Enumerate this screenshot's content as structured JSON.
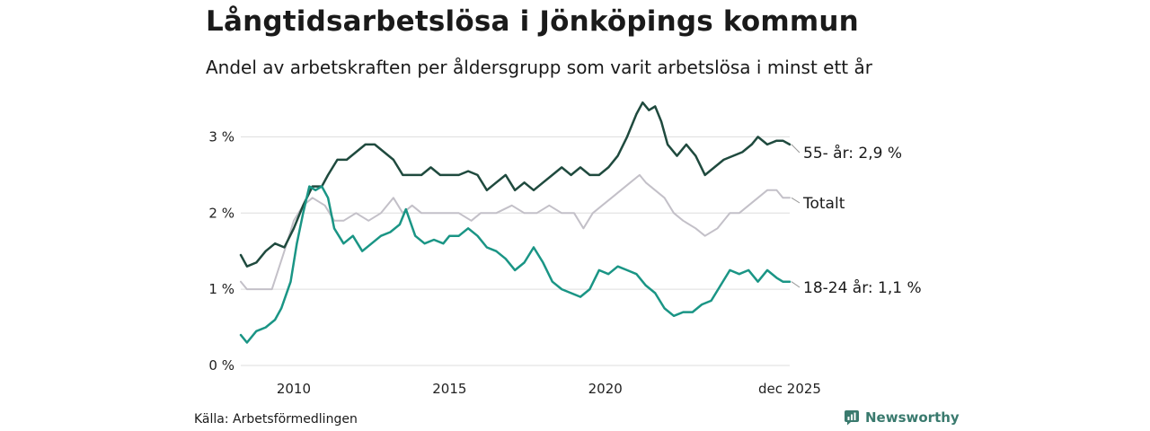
{
  "header": {
    "title": "Långtidsarbetslösa i Jönköpings kommun",
    "subtitle": "Andel av arbetskraften per åldersgrupp som varit arbetslösa i minst ett år"
  },
  "footer": {
    "source": "Källa: Arbetsförmedlingen",
    "brand": "Newsworthy"
  },
  "colors": {
    "older": "#1f4a3e",
    "total": "#c3c0c8",
    "young": "#1a9585",
    "grid": "#dddddd",
    "brand": "#3a7a6e"
  },
  "chart_data": {
    "type": "line",
    "title": "Långtidsarbetslösa i Jönköpings kommun",
    "subtitle": "Andel av arbetskraften per åldersgrupp som varit arbetslösa i minst ett år",
    "xlabel": "",
    "ylabel": "",
    "xlim": [
      2008.3,
      2025.92
    ],
    "ylim": [
      0,
      3.5
    ],
    "y_ticks": [
      0,
      1,
      2,
      3
    ],
    "y_tick_labels": [
      "0 %",
      "1 %",
      "2 %",
      "3 %"
    ],
    "x_ticks": [
      2010,
      2015,
      2020,
      2025.92
    ],
    "x_tick_labels": [
      "2010",
      "2015",
      "2020",
      "dec 2025"
    ],
    "grid": true,
    "series": [
      {
        "key": "total",
        "name": "Totalt",
        "end_label": "Totalt",
        "x": [
          2008.3,
          2008.5,
          2009.0,
          2009.3,
          2009.7,
          2010.0,
          2010.3,
          2010.6,
          2011.0,
          2011.3,
          2011.6,
          2012.0,
          2012.4,
          2012.8,
          2013.2,
          2013.5,
          2013.8,
          2014.1,
          2014.4,
          2014.7,
          2015.0,
          2015.3,
          2015.7,
          2016.0,
          2016.5,
          2017.0,
          2017.4,
          2017.8,
          2018.2,
          2018.6,
          2019.0,
          2019.3,
          2019.6,
          2019.9,
          2020.2,
          2020.5,
          2020.8,
          2021.1,
          2021.3,
          2021.6,
          2021.9,
          2022.2,
          2022.5,
          2022.9,
          2023.2,
          2023.6,
          2024.0,
          2024.3,
          2024.6,
          2024.9,
          2025.2,
          2025.5,
          2025.7,
          2025.92
        ],
        "values": [
          1.1,
          1.0,
          1.0,
          1.0,
          1.5,
          1.9,
          2.1,
          2.2,
          2.1,
          1.9,
          1.9,
          2.0,
          1.9,
          2.0,
          2.2,
          2.0,
          2.1,
          2.0,
          2.0,
          2.0,
          2.0,
          2.0,
          1.9,
          2.0,
          2.0,
          2.1,
          2.0,
          2.0,
          2.1,
          2.0,
          2.0,
          1.8,
          2.0,
          2.1,
          2.2,
          2.3,
          2.4,
          2.5,
          2.4,
          2.3,
          2.2,
          2.0,
          1.9,
          1.8,
          1.7,
          1.8,
          2.0,
          2.0,
          2.1,
          2.2,
          2.3,
          2.3,
          2.2,
          2.2
        ]
      },
      {
        "key": "older",
        "name": "55- år",
        "end_label": "55- år: 2,9 %",
        "x": [
          2008.3,
          2008.5,
          2008.8,
          2009.1,
          2009.4,
          2009.7,
          2010.0,
          2010.3,
          2010.6,
          2010.9,
          2011.1,
          2011.4,
          2011.7,
          2012.0,
          2012.3,
          2012.6,
          2012.9,
          2013.2,
          2013.5,
          2013.8,
          2014.1,
          2014.4,
          2014.7,
          2015.0,
          2015.3,
          2015.6,
          2015.9,
          2016.2,
          2016.5,
          2016.8,
          2017.1,
          2017.4,
          2017.7,
          2018.0,
          2018.3,
          2018.6,
          2018.9,
          2019.2,
          2019.5,
          2019.8,
          2020.1,
          2020.4,
          2020.7,
          2021.0,
          2021.2,
          2021.4,
          2021.6,
          2021.8,
          2022.0,
          2022.3,
          2022.6,
          2022.9,
          2023.2,
          2023.5,
          2023.8,
          2024.1,
          2024.4,
          2024.7,
          2024.9,
          2025.2,
          2025.5,
          2025.7,
          2025.92
        ],
        "values": [
          1.45,
          1.3,
          1.35,
          1.5,
          1.6,
          1.55,
          1.8,
          2.1,
          2.35,
          2.35,
          2.5,
          2.7,
          2.7,
          2.8,
          2.9,
          2.9,
          2.8,
          2.7,
          2.5,
          2.5,
          2.5,
          2.6,
          2.5,
          2.5,
          2.5,
          2.55,
          2.5,
          2.3,
          2.4,
          2.5,
          2.3,
          2.4,
          2.3,
          2.4,
          2.5,
          2.6,
          2.5,
          2.6,
          2.5,
          2.5,
          2.6,
          2.75,
          3.0,
          3.3,
          3.45,
          3.35,
          3.4,
          3.2,
          2.9,
          2.75,
          2.9,
          2.75,
          2.5,
          2.6,
          2.7,
          2.75,
          2.8,
          2.9,
          3.0,
          2.9,
          2.95,
          2.95,
          2.9
        ]
      },
      {
        "key": "young",
        "name": "18-24 år",
        "end_label": "18-24 år: 1,1 %",
        "x": [
          2008.3,
          2008.5,
          2008.8,
          2009.1,
          2009.4,
          2009.6,
          2009.9,
          2010.1,
          2010.3,
          2010.5,
          2010.7,
          2010.9,
          2011.1,
          2011.3,
          2011.6,
          2011.9,
          2012.2,
          2012.5,
          2012.8,
          2013.1,
          2013.4,
          2013.6,
          2013.9,
          2014.2,
          2014.5,
          2014.8,
          2015.0,
          2015.3,
          2015.6,
          2015.9,
          2016.2,
          2016.5,
          2016.8,
          2017.1,
          2017.4,
          2017.7,
          2018.0,
          2018.3,
          2018.6,
          2018.9,
          2019.2,
          2019.5,
          2019.8,
          2020.1,
          2020.4,
          2020.7,
          2021.0,
          2021.3,
          2021.6,
          2021.9,
          2022.2,
          2022.5,
          2022.8,
          2023.1,
          2023.4,
          2023.7,
          2024.0,
          2024.3,
          2024.6,
          2024.9,
          2025.2,
          2025.5,
          2025.7,
          2025.92
        ],
        "values": [
          0.4,
          0.3,
          0.45,
          0.5,
          0.6,
          0.75,
          1.1,
          1.6,
          2.0,
          2.35,
          2.3,
          2.35,
          2.2,
          1.8,
          1.6,
          1.7,
          1.5,
          1.6,
          1.7,
          1.75,
          1.85,
          2.05,
          1.7,
          1.6,
          1.65,
          1.6,
          1.7,
          1.7,
          1.8,
          1.7,
          1.55,
          1.5,
          1.4,
          1.25,
          1.35,
          1.55,
          1.35,
          1.1,
          1.0,
          0.95,
          0.9,
          1.0,
          1.25,
          1.2,
          1.3,
          1.25,
          1.2,
          1.05,
          0.95,
          0.75,
          0.65,
          0.7,
          0.7,
          0.8,
          0.85,
          1.05,
          1.25,
          1.2,
          1.25,
          1.1,
          1.25,
          1.15,
          1.1,
          1.1
        ]
      }
    ]
  }
}
